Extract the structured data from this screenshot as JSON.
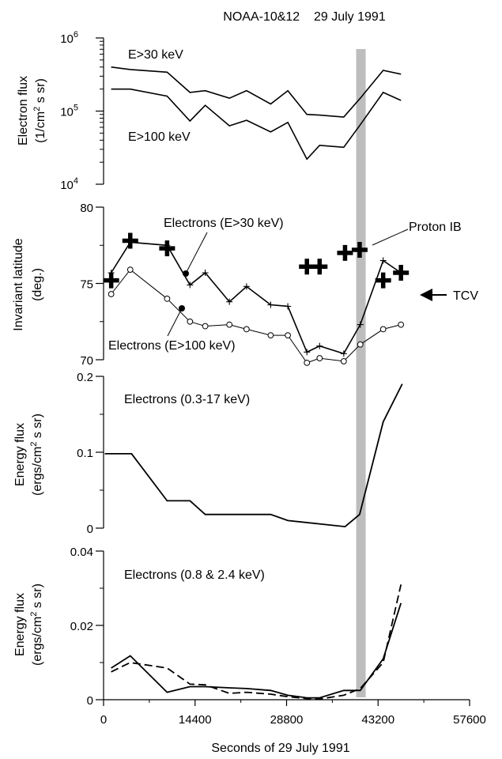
{
  "chart_data": [
    {
      "type": "line",
      "title": "NOAA-10&12    29 July 1991",
      "ylabel": "Electron flux",
      "yunit_prefix": "(1/cm",
      "yunit_sup": "2",
      "yunit_suffix": " s sr)",
      "yscale": "log",
      "ylim": [
        10000,
        1000000
      ],
      "yticks": [
        {
          "base": "10",
          "exp": "4"
        },
        {
          "base": "10",
          "exp": "5"
        },
        {
          "base": "10",
          "exp": "6"
        }
      ],
      "series": [
        {
          "name": "E>30 keV",
          "x": [
            1200,
            4200,
            10000,
            13600,
            16000,
            19800,
            22500,
            26300,
            29000,
            32000,
            34000,
            37800,
            40400,
            44000,
            46800
          ],
          "y": [
            400000,
            370000,
            340000,
            180000,
            190000,
            150000,
            190000,
            125000,
            190000,
            90000,
            88000,
            83000,
            150000,
            360000,
            320000
          ]
        },
        {
          "name": "E>100 keV",
          "x": [
            1200,
            4200,
            10000,
            13600,
            16000,
            19800,
            22500,
            26300,
            29000,
            32000,
            34000,
            37800,
            40400,
            44000,
            46800
          ],
          "y": [
            200000,
            200000,
            160000,
            73000,
            120000,
            63000,
            75000,
            52000,
            70000,
            22000,
            34000,
            32000,
            65000,
            180000,
            140000
          ]
        }
      ]
    },
    {
      "type": "line",
      "ylabel": "Invariant latitude",
      "yunit": "(deg.)",
      "ylim": [
        70,
        80
      ],
      "yticks": [
        "70",
        "75",
        "80"
      ],
      "series": [
        {
          "name": "Electrons (E>30 keV)",
          "x": [
            1200,
            4200,
            10000,
            13600,
            16000,
            19800,
            22500,
            26300,
            29000,
            32000,
            34000,
            37800,
            40400,
            44000,
            46800
          ],
          "y": [
            75.7,
            77.7,
            77.5,
            74.9,
            75.7,
            73.8,
            74.8,
            73.6,
            73.5,
            70.5,
            70.9,
            70.4,
            72.3,
            76.5,
            75.7
          ]
        },
        {
          "name": "Electrons (E>100 keV)",
          "x": [
            1200,
            4200,
            10000,
            13600,
            16000,
            19800,
            22500,
            26300,
            29000,
            32000,
            34000,
            37800,
            40400,
            44000,
            46800
          ],
          "y": [
            74.3,
            75.9,
            74.0,
            72.5,
            72.2,
            72.3,
            72.0,
            71.6,
            71.6,
            69.8,
            70.1,
            69.9,
            71.0,
            72.0,
            72.3
          ]
        },
        {
          "name": "Proton IB",
          "x": [
            1200,
            4200,
            10000,
            32000,
            34000,
            38000,
            40300,
            44000,
            46800
          ],
          "y": [
            75.2,
            77.8,
            77.3,
            76.1,
            76.1,
            77.0,
            77.2,
            75.2,
            75.7
          ]
        }
      ],
      "annotations": {
        "electrons_30": "Electrons (E>30 keV)",
        "electrons_100": "Electrons (E>100 keV)",
        "proton_ib": "Proton IB",
        "tcv": "TCV"
      }
    },
    {
      "type": "line",
      "ylabel": "Energy flux",
      "yunit_prefix": "(ergs/cm",
      "yunit_sup": "2",
      "yunit_suffix": " s sr)",
      "ylim": [
        0,
        0.2
      ],
      "yticks": [
        "0",
        "0.1",
        "0.2"
      ],
      "label": "Electrons (0.3-17 keV)",
      "series": [
        {
          "name": "Electrons (0.3-17 keV)",
          "x": [
            200,
            2200,
            4400,
            10000,
            13600,
            16000,
            22500,
            26300,
            29000,
            38000,
            40300,
            44000,
            47000
          ],
          "y": [
            0.098,
            0.098,
            0.098,
            0.036,
            0.036,
            0.018,
            0.018,
            0.018,
            0.01,
            0.002,
            0.018,
            0.14,
            0.19
          ]
        }
      ]
    },
    {
      "type": "line",
      "ylabel": "Energy flux",
      "yunit_prefix": "(ergs/cm",
      "yunit_sup": "2",
      "yunit_suffix": " s sr)",
      "ylim": [
        0,
        0.04
      ],
      "yticks": [
        "0",
        "0.02",
        "0.04"
      ],
      "label": "Electrons (0.8 & 2.4 keV)",
      "xlabel": "Seconds of 29 July 1991",
      "xlim": [
        0,
        57600
      ],
      "xticks": [
        "0",
        "14400",
        "28800",
        "43200",
        "57600"
      ],
      "series": [
        {
          "name": "Electrons 0.8 keV",
          "style": "solid",
          "x": [
            1200,
            4200,
            10000,
            13600,
            16000,
            19800,
            22500,
            26300,
            29000,
            32000,
            34000,
            37800,
            40400,
            44000,
            46800
          ],
          "y": [
            0.0085,
            0.0118,
            0.002,
            0.0035,
            0.0035,
            0.0032,
            0.003,
            0.0025,
            0.0012,
            0.0005,
            0.0005,
            0.0025,
            0.0025,
            0.011,
            0.026
          ]
        },
        {
          "name": "Electrons 2.4 keV",
          "style": "dashed",
          "x": [
            1200,
            4200,
            10000,
            13600,
            16000,
            19800,
            22500,
            26300,
            29000,
            32000,
            34000,
            37800,
            40400,
            44000,
            46800
          ],
          "y": [
            0.0075,
            0.01,
            0.0085,
            0.0042,
            0.004,
            0.0017,
            0.002,
            0.0015,
            0.0008,
            0.0003,
            0.0002,
            0.0012,
            0.003,
            0.01,
            0.031
          ]
        }
      ]
    }
  ],
  "highlight_band": {
    "x": 40500,
    "color": "#bdbdbd"
  }
}
